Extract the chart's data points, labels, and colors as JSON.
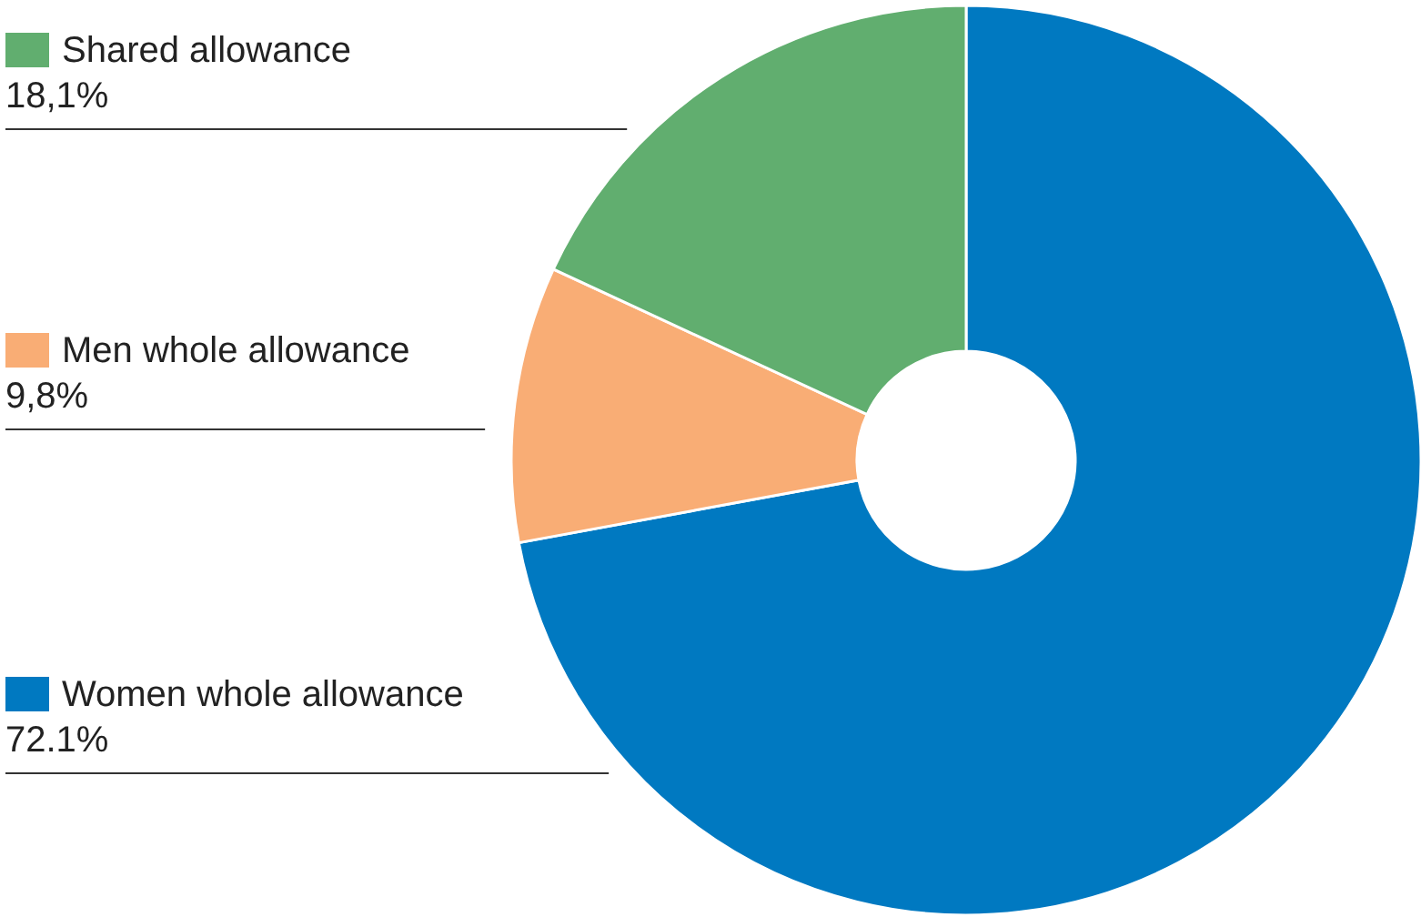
{
  "chart_data": {
    "type": "donut",
    "categories": [
      "Women whole allowance",
      "Men whole allowance",
      "Shared allowance"
    ],
    "values": [
      72.1,
      9.8,
      18.1
    ],
    "colors": [
      "#0079c1",
      "#f9ad75",
      "#61ae6f"
    ],
    "value_labels": [
      "72.1%",
      "9,8%",
      "18,1%"
    ],
    "legend": "left"
  }
}
